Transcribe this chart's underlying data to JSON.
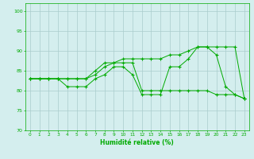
{
  "title": "",
  "xlabel": "Humidité relative (%)",
  "ylabel": "",
  "xlim": [
    -0.5,
    23.5
  ],
  "ylim": [
    70,
    102
  ],
  "yticks": [
    70,
    75,
    80,
    85,
    90,
    95,
    100
  ],
  "xticks": [
    0,
    1,
    2,
    3,
    4,
    5,
    6,
    7,
    8,
    9,
    10,
    11,
    12,
    13,
    14,
    15,
    16,
    17,
    18,
    19,
    20,
    21,
    22,
    23
  ],
  "bg_color": "#d4eeee",
  "grid_color": "#aacccc",
  "line_color": "#00aa00",
  "line1": [
    83,
    83,
    83,
    83,
    81,
    81,
    81,
    83,
    84,
    86,
    86,
    84,
    79,
    79,
    79,
    86,
    86,
    88,
    91,
    91,
    89,
    81,
    79,
    78
  ],
  "line2": [
    83,
    83,
    83,
    83,
    83,
    83,
    83,
    84,
    86,
    87,
    87,
    87,
    80,
    80,
    80,
    80,
    80,
    80,
    80,
    80,
    79,
    79,
    79,
    78
  ],
  "line3": [
    83,
    83,
    83,
    83,
    83,
    83,
    83,
    85,
    87,
    87,
    88,
    88,
    88,
    88,
    88,
    89,
    89,
    90,
    91,
    91,
    91,
    91,
    91,
    78
  ]
}
